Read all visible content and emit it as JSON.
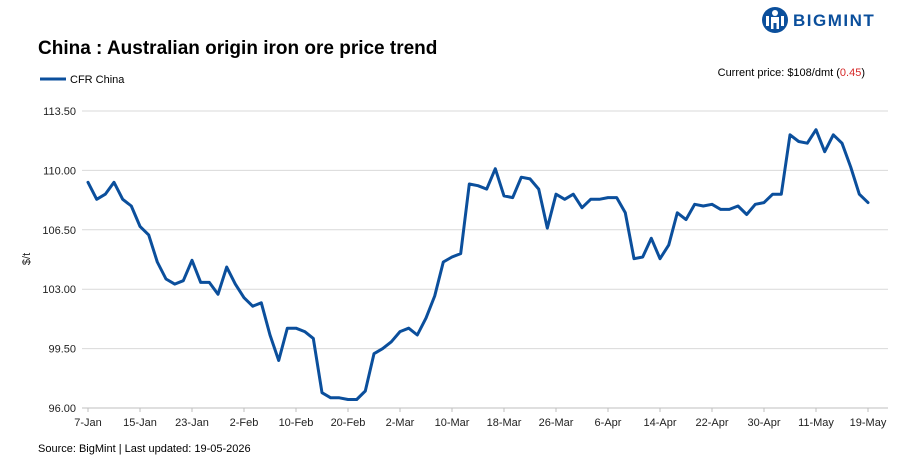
{
  "brand": {
    "name": "BIGMINT",
    "color": "#0b4f9c"
  },
  "header": {
    "current_price_label": "Current price: $108/dmt (",
    "current_price_change": "0.45",
    "current_price_close": ")",
    "change_color": "#d62828"
  },
  "footer": {
    "source": "Source: BigMint | Last updated: 19-05-2026"
  },
  "chart_data": {
    "type": "line",
    "title": "China : Australian origin iron ore price trend",
    "xlabel": "",
    "ylabel": "$/t",
    "ylim": [
      96.0,
      113.5
    ],
    "yticks": [
      "96.00",
      "99.50",
      "103.00",
      "106.50",
      "110.00",
      "113.50"
    ],
    "ytick_values": [
      96.0,
      99.5,
      103.0,
      106.5,
      110.0,
      113.5
    ],
    "xtick_labels": [
      "7-Jan",
      "15-Jan",
      "23-Jan",
      "2-Feb",
      "10-Feb",
      "20-Feb",
      "2-Mar",
      "10-Mar",
      "18-Mar",
      "26-Mar",
      "6-Apr",
      "14-Apr",
      "22-Apr",
      "30-Apr",
      "11-May",
      "19-May"
    ],
    "xtick_index": [
      0,
      6,
      12,
      18,
      24,
      30,
      36,
      42,
      48,
      54,
      60,
      66,
      72,
      78,
      84,
      90
    ],
    "grid": true,
    "legend": "top-left",
    "series": [
      {
        "name": "CFR China",
        "color": "#0b4f9c",
        "values": [
          109.3,
          108.3,
          108.6,
          109.3,
          108.3,
          107.9,
          106.7,
          106.2,
          104.6,
          103.6,
          103.3,
          103.5,
          104.7,
          103.4,
          103.4,
          102.7,
          104.3,
          103.3,
          102.5,
          102.0,
          102.2,
          100.3,
          98.8,
          100.7,
          100.7,
          100.5,
          100.1,
          96.9,
          96.6,
          96.6,
          96.5,
          96.5,
          97.0,
          99.2,
          99.5,
          99.9,
          100.5,
          100.7,
          100.3,
          101.3,
          102.6,
          104.6,
          104.9,
          105.1,
          109.2,
          109.1,
          108.9,
          110.1,
          108.5,
          108.4,
          109.6,
          109.5,
          108.9,
          106.6,
          108.6,
          108.3,
          108.6,
          107.8,
          108.3,
          108.3,
          108.4,
          108.4,
          107.5,
          104.8,
          104.9,
          106.0,
          104.8,
          105.6,
          107.5,
          107.1,
          108.0,
          107.9,
          108.0,
          107.7,
          107.7,
          107.9,
          107.4,
          108.0,
          108.1,
          108.6,
          108.6,
          112.1,
          111.7,
          111.6,
          112.4,
          111.1,
          112.1,
          111.6,
          110.2,
          108.6,
          108.1
        ]
      }
    ]
  }
}
